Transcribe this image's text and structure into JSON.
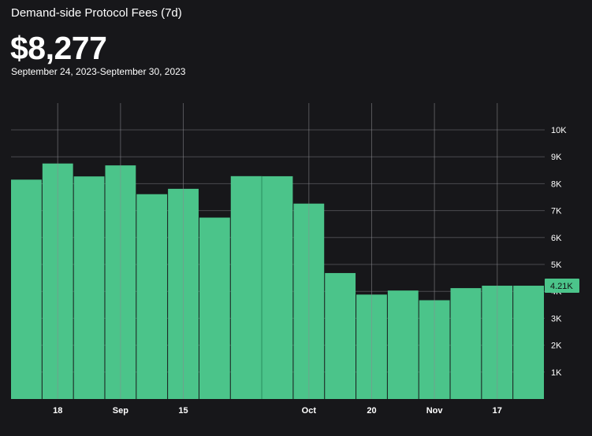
{
  "header": {
    "title": "Demand-side Protocol Fees (7d)",
    "value": "$8,277",
    "date_range": "September 24, 2023-September 30, 2023"
  },
  "colors": {
    "background": "#17171a",
    "bar": "#4bc48a",
    "grid": "#4a4a4f",
    "badge": "#4bc48a"
  },
  "chart_data": {
    "type": "bar",
    "title": "",
    "xlabel": "",
    "ylabel": "",
    "ylim": [
      0,
      10800
    ],
    "values": [
      8150,
      8750,
      8270,
      8680,
      7610,
      7810,
      6740,
      8280,
      8277,
      7260,
      4680,
      3880,
      4030,
      3670,
      4120,
      4210,
      4210
    ],
    "highlight_index": 8,
    "y_ticks": [
      {
        "value": 1000,
        "label": "1K"
      },
      {
        "value": 2000,
        "label": "2K"
      },
      {
        "value": 3000,
        "label": "3K"
      },
      {
        "value": 4000,
        "label": "4K"
      },
      {
        "value": 5000,
        "label": "5K"
      },
      {
        "value": 6000,
        "label": "6K"
      },
      {
        "value": 7000,
        "label": "7K"
      },
      {
        "value": 8000,
        "label": "8K"
      },
      {
        "value": 9000,
        "label": "9K"
      },
      {
        "value": 10000,
        "label": "10K"
      }
    ],
    "x_ticks": [
      {
        "pos": 1.5,
        "label": "18"
      },
      {
        "pos": 3.5,
        "label": "Sep"
      },
      {
        "pos": 5.5,
        "label": "15"
      },
      {
        "pos": 9.5,
        "label": "Oct"
      },
      {
        "pos": 11.5,
        "label": "20"
      },
      {
        "pos": 13.5,
        "label": "Nov"
      },
      {
        "pos": 15.5,
        "label": "17"
      }
    ],
    "current_value_label": "4.21K",
    "current_value": 4210,
    "grid": true
  }
}
